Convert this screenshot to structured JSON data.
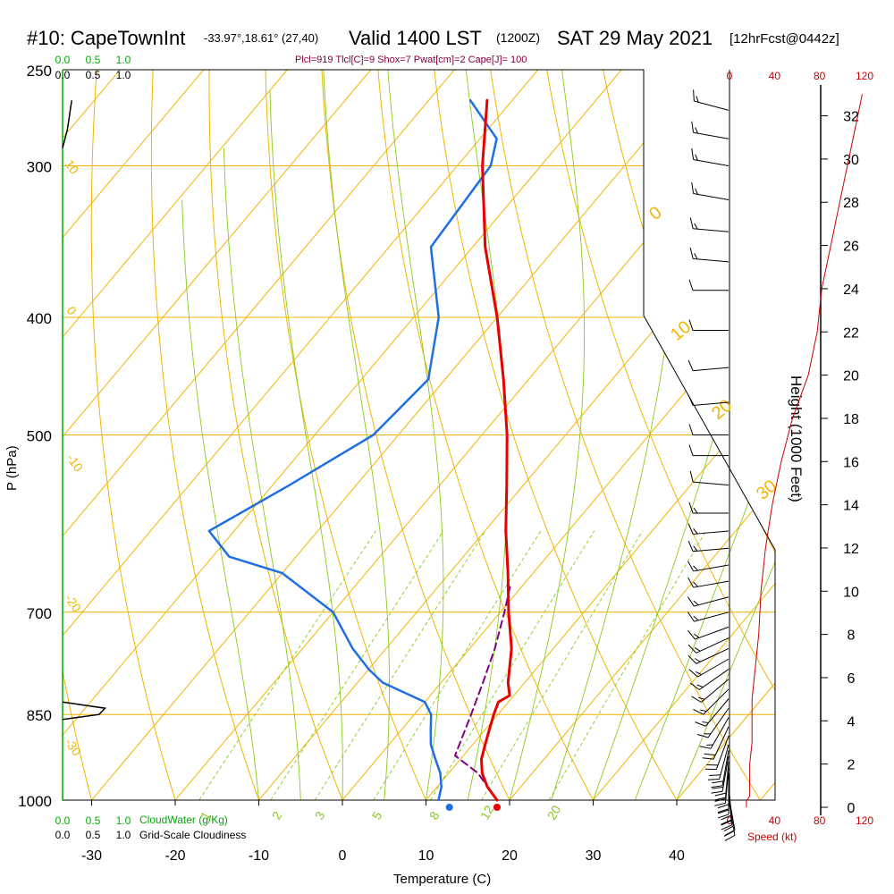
{
  "header": {
    "station": "#10: CapeTownInt",
    "coords": "-33.97°,18.61° (27,40)",
    "valid": "Valid 1400 LST",
    "utc": "(1200Z)",
    "date": "SAT 29 May 2021",
    "forecast": "[12hrFcst@0442z]"
  },
  "indices_text": "Plcl=919 Tlcl[C]=9 Shox=7 Pwat[cm]=2 Cape[J]= 100",
  "colors": {
    "isotherm": "#f2b400",
    "dry_adiabat": "#f2b400",
    "moist_adiabat": "#8cc81e",
    "mixing_ratio": "#8cc81e",
    "temperature": "#e60000",
    "dewpoint": "#1e6ee6",
    "parcel": "#800080",
    "cloudwater": "#00aa00",
    "speed": "#cc0000"
  },
  "chart_data": {
    "type": "skew-t",
    "title": "#10: CapeTownInt -33.97°,18.61° (27,40) Valid 1400 LST (1200Z) SAT 29 May 2021 [12hrFcst@0442z]",
    "xlabel": "Temperature (C)",
    "ylabel": "P (hPa)",
    "right_ylabel": "Height (1000 Feet)",
    "x_ticks": [
      "-30",
      "-20",
      "-10",
      "0",
      "10",
      "20",
      "30",
      "40"
    ],
    "y_ticks": [
      "250",
      "300",
      "400",
      "500",
      "700",
      "850",
      "1000"
    ],
    "height_ticks": [
      "0",
      "2",
      "4",
      "6",
      "8",
      "10",
      "12",
      "14",
      "16",
      "18",
      "20",
      "22",
      "24",
      "26",
      "28",
      "30",
      "32"
    ],
    "xlim": [
      -34,
      36
    ],
    "ylim": [
      1000,
      250
    ],
    "temperature_profile": [
      {
        "p": 1000,
        "t": 18.5
      },
      {
        "p": 975,
        "t": 16
      },
      {
        "p": 950,
        "t": 14
      },
      {
        "p": 925,
        "t": 12.5
      },
      {
        "p": 900,
        "t": 11.5
      },
      {
        "p": 875,
        "t": 10.5
      },
      {
        "p": 850,
        "t": 9.5
      },
      {
        "p": 830,
        "t": 8.8
      },
      {
        "p": 820,
        "t": 9.5
      },
      {
        "p": 800,
        "t": 8
      },
      {
        "p": 750,
        "t": 5
      },
      {
        "p": 700,
        "t": 1
      },
      {
        "p": 650,
        "t": -3
      },
      {
        "p": 600,
        "t": -7.5
      },
      {
        "p": 550,
        "t": -12
      },
      {
        "p": 500,
        "t": -17
      },
      {
        "p": 450,
        "t": -23
      },
      {
        "p": 400,
        "t": -30
      },
      {
        "p": 350,
        "t": -38.5
      },
      {
        "p": 300,
        "t": -47
      },
      {
        "p": 265,
        "t": -53
      }
    ],
    "dewpoint_profile": [
      {
        "p": 1000,
        "t": 11.5
      },
      {
        "p": 975,
        "t": 10.5
      },
      {
        "p": 950,
        "t": 9
      },
      {
        "p": 925,
        "t": 7
      },
      {
        "p": 900,
        "t": 5
      },
      {
        "p": 875,
        "t": 3.5
      },
      {
        "p": 850,
        "t": 2
      },
      {
        "p": 830,
        "t": 0
      },
      {
        "p": 800,
        "t": -7
      },
      {
        "p": 780,
        "t": -10
      },
      {
        "p": 750,
        "t": -14
      },
      {
        "p": 700,
        "t": -20
      },
      {
        "p": 650,
        "t": -30
      },
      {
        "p": 630,
        "t": -38
      },
      {
        "p": 600,
        "t": -43
      },
      {
        "p": 550,
        "t": -38
      },
      {
        "p": 500,
        "t": -33
      },
      {
        "p": 450,
        "t": -32
      },
      {
        "p": 400,
        "t": -37
      },
      {
        "p": 350,
        "t": -45
      },
      {
        "p": 300,
        "t": -46
      },
      {
        "p": 285,
        "t": -48
      },
      {
        "p": 265,
        "t": -55
      }
    ],
    "parcel_profile": [
      {
        "p": 1000,
        "t": 18.5
      },
      {
        "p": 950,
        "t": 13.5
      },
      {
        "p": 919,
        "t": 9
      },
      {
        "p": 850,
        "t": 6.8
      },
      {
        "p": 800,
        "t": 5
      },
      {
        "p": 750,
        "t": 3
      },
      {
        "p": 700,
        "t": 0.5
      },
      {
        "p": 665,
        "t": -1.5
      }
    ],
    "surface_points": {
      "temperature": 18.5,
      "dewpoint": 12.8
    },
    "winds": [
      {
        "p": 1000,
        "dir": 170,
        "kt": 20
      },
      {
        "p": 990,
        "dir": 170,
        "kt": 20
      },
      {
        "p": 980,
        "dir": 175,
        "kt": 22
      },
      {
        "p": 970,
        "dir": 175,
        "kt": 22
      },
      {
        "p": 960,
        "dir": 180,
        "kt": 22
      },
      {
        "p": 950,
        "dir": 180,
        "kt": 22
      },
      {
        "p": 940,
        "dir": 185,
        "kt": 20
      },
      {
        "p": 930,
        "dir": 185,
        "kt": 20
      },
      {
        "p": 920,
        "dir": 190,
        "kt": 20
      },
      {
        "p": 910,
        "dir": 190,
        "kt": 20
      },
      {
        "p": 900,
        "dir": 195,
        "kt": 20
      },
      {
        "p": 885,
        "dir": 200,
        "kt": 20
      },
      {
        "p": 870,
        "dir": 205,
        "kt": 20
      },
      {
        "p": 855,
        "dir": 210,
        "kt": 15
      },
      {
        "p": 840,
        "dir": 215,
        "kt": 15
      },
      {
        "p": 825,
        "dir": 220,
        "kt": 15
      },
      {
        "p": 810,
        "dir": 225,
        "kt": 15
      },
      {
        "p": 795,
        "dir": 230,
        "kt": 15
      },
      {
        "p": 780,
        "dir": 235,
        "kt": 15
      },
      {
        "p": 765,
        "dir": 240,
        "kt": 15
      },
      {
        "p": 750,
        "dir": 245,
        "kt": 15
      },
      {
        "p": 735,
        "dir": 245,
        "kt": 15
      },
      {
        "p": 720,
        "dir": 250,
        "kt": 15
      },
      {
        "p": 700,
        "dir": 255,
        "kt": 15
      },
      {
        "p": 680,
        "dir": 255,
        "kt": 15
      },
      {
        "p": 660,
        "dir": 260,
        "kt": 15
      },
      {
        "p": 640,
        "dir": 260,
        "kt": 15
      },
      {
        "p": 620,
        "dir": 265,
        "kt": 15
      },
      {
        "p": 600,
        "dir": 265,
        "kt": 15
      },
      {
        "p": 580,
        "dir": 270,
        "kt": 15
      },
      {
        "p": 550,
        "dir": 275,
        "kt": 10
      },
      {
        "p": 520,
        "dir": 270,
        "kt": 10
      },
      {
        "p": 500,
        "dir": 270,
        "kt": 10
      },
      {
        "p": 470,
        "dir": 265,
        "kt": 10
      },
      {
        "p": 440,
        "dir": 265,
        "kt": 10
      },
      {
        "p": 410,
        "dir": 270,
        "kt": 10
      },
      {
        "p": 380,
        "dir": 270,
        "kt": 10
      },
      {
        "p": 360,
        "dir": 275,
        "kt": 15
      },
      {
        "p": 340,
        "dir": 275,
        "kt": 15
      },
      {
        "p": 320,
        "dir": 280,
        "kt": 15
      },
      {
        "p": 300,
        "dir": 280,
        "kt": 15
      },
      {
        "p": 285,
        "dir": 280,
        "kt": 15
      },
      {
        "p": 270,
        "dir": 285,
        "kt": 15
      }
    ],
    "wind_speed_profile": [
      {
        "h": 0,
        "kt": 15
      },
      {
        "h": 0.3,
        "kt": 15
      },
      {
        "h": 0.5,
        "kt": 18
      },
      {
        "h": 1,
        "kt": 18
      },
      {
        "h": 2,
        "kt": 18
      },
      {
        "h": 3,
        "kt": 20
      },
      {
        "h": 4,
        "kt": 20
      },
      {
        "h": 5,
        "kt": 20
      },
      {
        "h": 6,
        "kt": 22
      },
      {
        "h": 7,
        "kt": 24
      },
      {
        "h": 8,
        "kt": 26
      },
      {
        "h": 10,
        "kt": 28
      },
      {
        "h": 12,
        "kt": 32
      },
      {
        "h": 14,
        "kt": 38
      },
      {
        "h": 16,
        "kt": 46
      },
      {
        "h": 18,
        "kt": 56
      },
      {
        "h": 20,
        "kt": 70
      },
      {
        "h": 22,
        "kt": 78
      },
      {
        "h": 24,
        "kt": 82
      },
      {
        "h": 26,
        "kt": 90
      },
      {
        "h": 28,
        "kt": 98
      },
      {
        "h": 30,
        "kt": 106
      },
      {
        "h": 32,
        "kt": 114
      },
      {
        "h": 33,
        "kt": 118
      }
    ],
    "speed_ticks": [
      "0",
      "40",
      "80",
      "120"
    ],
    "speed_label": "Speed (kt)",
    "isotherm_labels": [
      "0",
      "10",
      "20",
      "30"
    ],
    "dry_adiabat_labels": [
      "10",
      "0",
      "-10",
      "-20",
      "-30"
    ],
    "mixing_ratio_labels": [
      "1",
      "2",
      "3",
      "5",
      "8",
      "12",
      "20"
    ],
    "cloudwater_scale": {
      "ticks": [
        "0.0",
        "0.5",
        "1.0"
      ],
      "label": "CloudWater (g/Kg)"
    },
    "cloudiness_scale": {
      "ticks": [
        "0.0",
        "0.5",
        "1.0"
      ],
      "label": "Grid-Scale Cloudiness"
    },
    "cloudwater_profile": [
      {
        "p": 830,
        "v": 0.0
      },
      {
        "p": 840,
        "v": 0.7
      },
      {
        "p": 850,
        "v": 0.6
      },
      {
        "p": 858,
        "v": 0.0
      }
    ],
    "cloudiness_profile": [
      {
        "p": 265,
        "v": 0.15
      },
      {
        "p": 280,
        "v": 0.08
      },
      {
        "p": 290,
        "v": 0.0
      }
    ]
  }
}
